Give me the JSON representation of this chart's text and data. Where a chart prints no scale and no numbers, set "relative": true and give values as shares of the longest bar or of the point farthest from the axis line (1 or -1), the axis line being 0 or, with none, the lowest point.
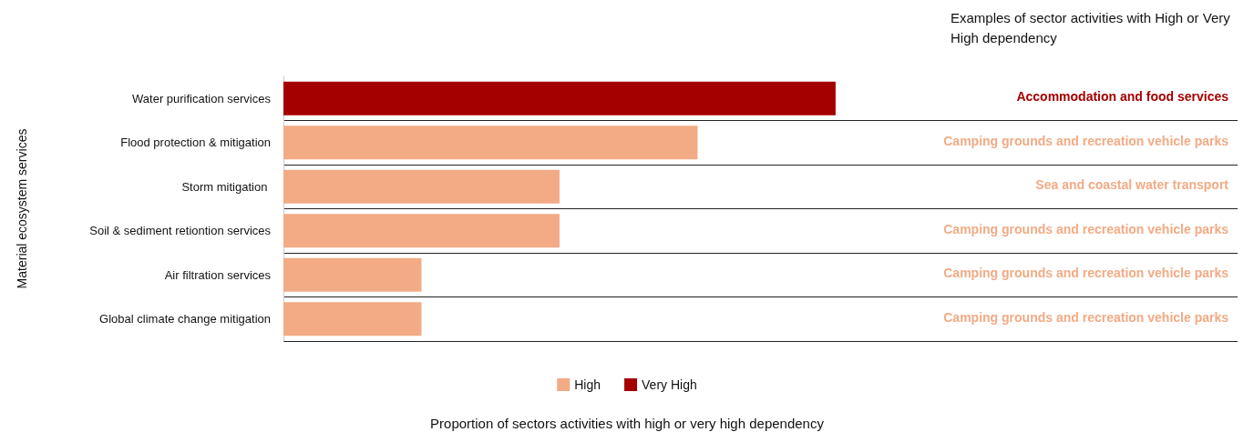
{
  "chart_data": {
    "type": "bar",
    "orientation": "horizontal",
    "stacked": true,
    "relative": true,
    "ylabel": "Material ecosystem services",
    "categories": [
      "Water purification services",
      "Flood protection & mitigation",
      "Storm mitigation ",
      "Soil & sediment retiontion services",
      "Air filtration services",
      "Global climate change mitigation"
    ],
    "series": [
      {
        "name": "High",
        "color": "#f2ab85",
        "values": [
          null,
          0.75,
          0.5,
          0.5,
          0.25,
          0.25
        ]
      },
      {
        "name": "Very High",
        "color": "#a50000",
        "values": [
          1,
          null,
          null,
          null,
          null,
          null
        ]
      }
    ],
    "grid": "y",
    "legend": "bottom",
    "annotations": [
      "Examples of sector activities with High or Very High dependency",
      "Accommodation and food services",
      "Camping grounds and recreation vehicle parks",
      "Sea and coastal water transport",
      "Camping grounds and recreation vehicle parks",
      "Camping grounds and recreation vehicle parks",
      "Camping grounds and recreation vehicle parks",
      "Proportion of sectors activities with high or very high dependency"
    ]
  }
}
